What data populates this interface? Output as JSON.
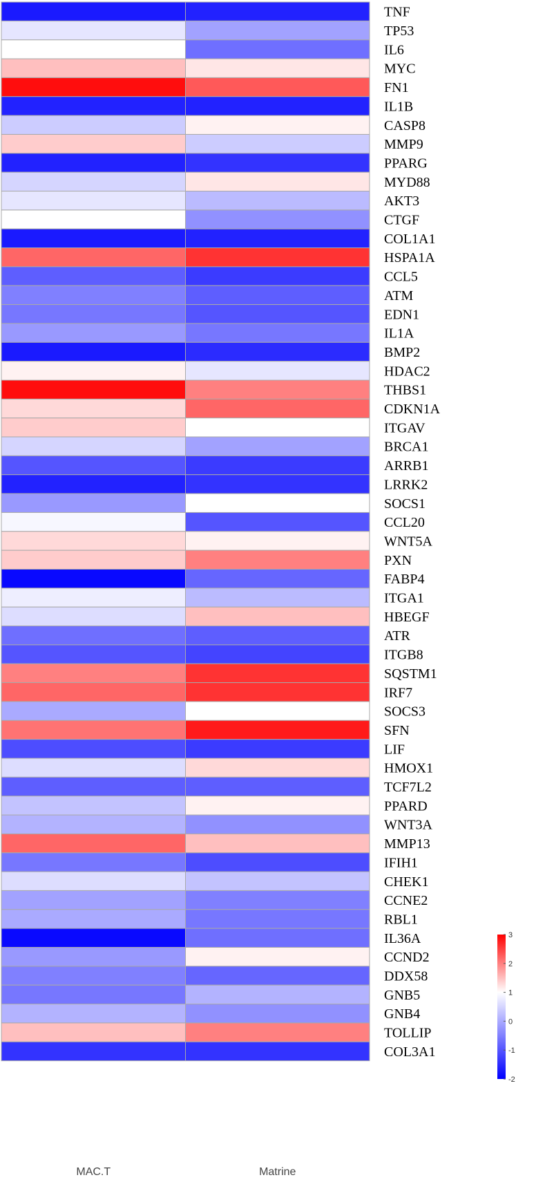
{
  "chart_data": {
    "type": "heatmap",
    "columns": [
      "MAC.T",
      "Matrine"
    ],
    "rows": [
      "TNF",
      "TP53",
      "IL6",
      "MYC",
      "FN1",
      "IL1B",
      "CASP8",
      "MMP9",
      "PPARG",
      "MYD88",
      "AKT3",
      "CTGF",
      "COL1A1",
      "HSPA1A",
      "CCL5",
      "ATM",
      "EDN1",
      "IL1A",
      "BMP2",
      "HDAC2",
      "THBS1",
      "CDKN1A",
      "ITGAV",
      "BRCA1",
      "ARRB1",
      "LRRK2",
      "SOCS1",
      "CCL20",
      "WNT5A",
      "PXN",
      "FABP4",
      "ITGA1",
      "HBEGF",
      "ATR",
      "ITGB8",
      "SQSTM1",
      "IRF7",
      "SOCS3",
      "SFN",
      "LIF",
      "HMOX1",
      "TCF7L2",
      "PPARD",
      "WNT3A",
      "MMP13",
      "IFIH1",
      "CHEK1",
      "CCNE2",
      "RBL1",
      "IL36A",
      "CCND2",
      "DDX58",
      "GNB5",
      "GNB4",
      "TOLLIP",
      "COL3A1"
    ],
    "values": [
      [
        -1.7,
        -1.6
      ],
      [
        0.7,
        -0.1
      ],
      [
        1.0,
        -0.7
      ],
      [
        1.5,
        1.2
      ],
      [
        2.9,
        2.3
      ],
      [
        -1.6,
        -1.6
      ],
      [
        0.4,
        1.1
      ],
      [
        1.4,
        0.4
      ],
      [
        -1.6,
        -1.4
      ],
      [
        0.5,
        1.2
      ],
      [
        0.7,
        0.2
      ],
      [
        1.0,
        -0.3
      ],
      [
        -1.7,
        -1.6
      ],
      [
        2.2,
        2.6
      ],
      [
        -0.9,
        -1.3
      ],
      [
        -0.5,
        -0.9
      ],
      [
        -0.6,
        -1.0
      ],
      [
        -0.2,
        -0.6
      ],
      [
        -1.7,
        -1.5
      ],
      [
        1.1,
        0.7
      ],
      [
        2.9,
        2.0
      ],
      [
        1.3,
        2.2
      ],
      [
        1.4,
        1.0
      ],
      [
        0.5,
        -0.1
      ],
      [
        -1.0,
        -1.3
      ],
      [
        -1.6,
        -1.4
      ],
      [
        -0.2,
        1.0
      ],
      [
        0.9,
        -1.0
      ],
      [
        1.3,
        1.1
      ],
      [
        1.4,
        2.0
      ],
      [
        -1.9,
        -0.8
      ],
      [
        0.8,
        0.2
      ],
      [
        0.6,
        1.5
      ],
      [
        -0.7,
        -0.9
      ],
      [
        -1.0,
        -1.2
      ],
      [
        2.0,
        2.6
      ],
      [
        2.2,
        2.6
      ],
      [
        0.0,
        1.0
      ],
      [
        2.1,
        2.8
      ],
      [
        -1.1,
        -1.3
      ],
      [
        0.6,
        1.3
      ],
      [
        -0.9,
        -0.9
      ],
      [
        0.3,
        1.1
      ],
      [
        0.1,
        -0.3
      ],
      [
        2.2,
        1.5
      ],
      [
        -0.6,
        -1.1
      ],
      [
        0.6,
        0.3
      ],
      [
        -0.1,
        -0.5
      ],
      [
        0.0,
        -0.6
      ],
      [
        -1.9,
        -0.7
      ],
      [
        -0.2,
        1.1
      ],
      [
        -0.5,
        -0.8
      ],
      [
        -0.6,
        0.1
      ],
      [
        0.1,
        -0.3
      ],
      [
        1.5,
        2.0
      ],
      [
        -1.4,
        -1.4
      ]
    ],
    "colorbar": {
      "min": -2,
      "max": 3,
      "ticks": [
        3,
        2,
        1,
        0,
        -1,
        -2
      ]
    },
    "colors": {
      "low": "#0000ff",
      "mid": "#ffffff",
      "high": "#ff0000",
      "cell_border": "#a9a9a9"
    }
  }
}
